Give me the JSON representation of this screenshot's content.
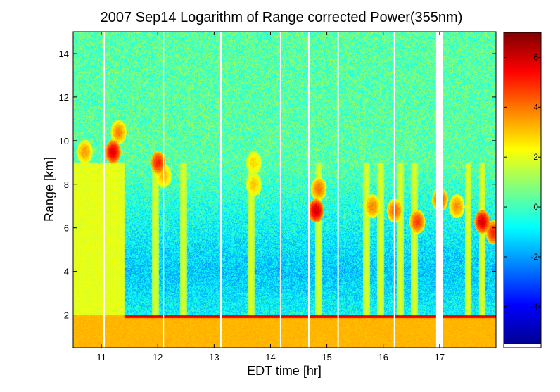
{
  "chart_data": {
    "type": "heatmap",
    "title": "2007 Sep14  Logarithm of Range corrected Power(355nm)",
    "xlabel": "EDT time [hr]",
    "ylabel": "Range [km]",
    "xlim": [
      10.5,
      18.0
    ],
    "ylim": [
      0.5,
      15.0
    ],
    "x_ticks": [
      11,
      12,
      13,
      14,
      15,
      16,
      17
    ],
    "y_ticks": [
      2,
      4,
      6,
      8,
      10,
      12,
      14
    ],
    "colorbar": {
      "range": [
        -5.5,
        7.0
      ],
      "ticks": [
        -4,
        -2,
        0,
        2,
        4,
        6
      ],
      "colormap": "jet"
    },
    "boundary_layer": {
      "top_km": 2.0,
      "value": 3.2
    },
    "data_gaps_hr": [
      11.05,
      12.1,
      13.12,
      14.18,
      14.68,
      15.2,
      16.2,
      17.0
    ],
    "clouds": [
      {
        "x": 10.7,
        "y": 9.5,
        "value": 3.5
      },
      {
        "x": 11.2,
        "y": 9.5,
        "value": 5.8
      },
      {
        "x": 11.3,
        "y": 10.4,
        "value": 3.8
      },
      {
        "x": 12.0,
        "y": 9.0,
        "value": 5.0
      },
      {
        "x": 12.1,
        "y": 8.4,
        "value": 3.2
      },
      {
        "x": 13.7,
        "y": 8.0,
        "value": 3.0
      },
      {
        "x": 13.7,
        "y": 9.0,
        "value": 2.8
      },
      {
        "x": 14.8,
        "y": 6.8,
        "value": 6.0
      },
      {
        "x": 14.85,
        "y": 7.8,
        "value": 4.0
      },
      {
        "x": 15.8,
        "y": 7.0,
        "value": 3.8
      },
      {
        "x": 16.2,
        "y": 6.8,
        "value": 4.2
      },
      {
        "x": 16.6,
        "y": 6.3,
        "value": 4.6
      },
      {
        "x": 17.0,
        "y": 7.3,
        "value": 4.5
      },
      {
        "x": 17.3,
        "y": 7.0,
        "value": 3.6
      },
      {
        "x": 17.75,
        "y": 6.3,
        "value": 5.8
      },
      {
        "x": 17.95,
        "y": 5.8,
        "value": 5.0
      }
    ]
  }
}
